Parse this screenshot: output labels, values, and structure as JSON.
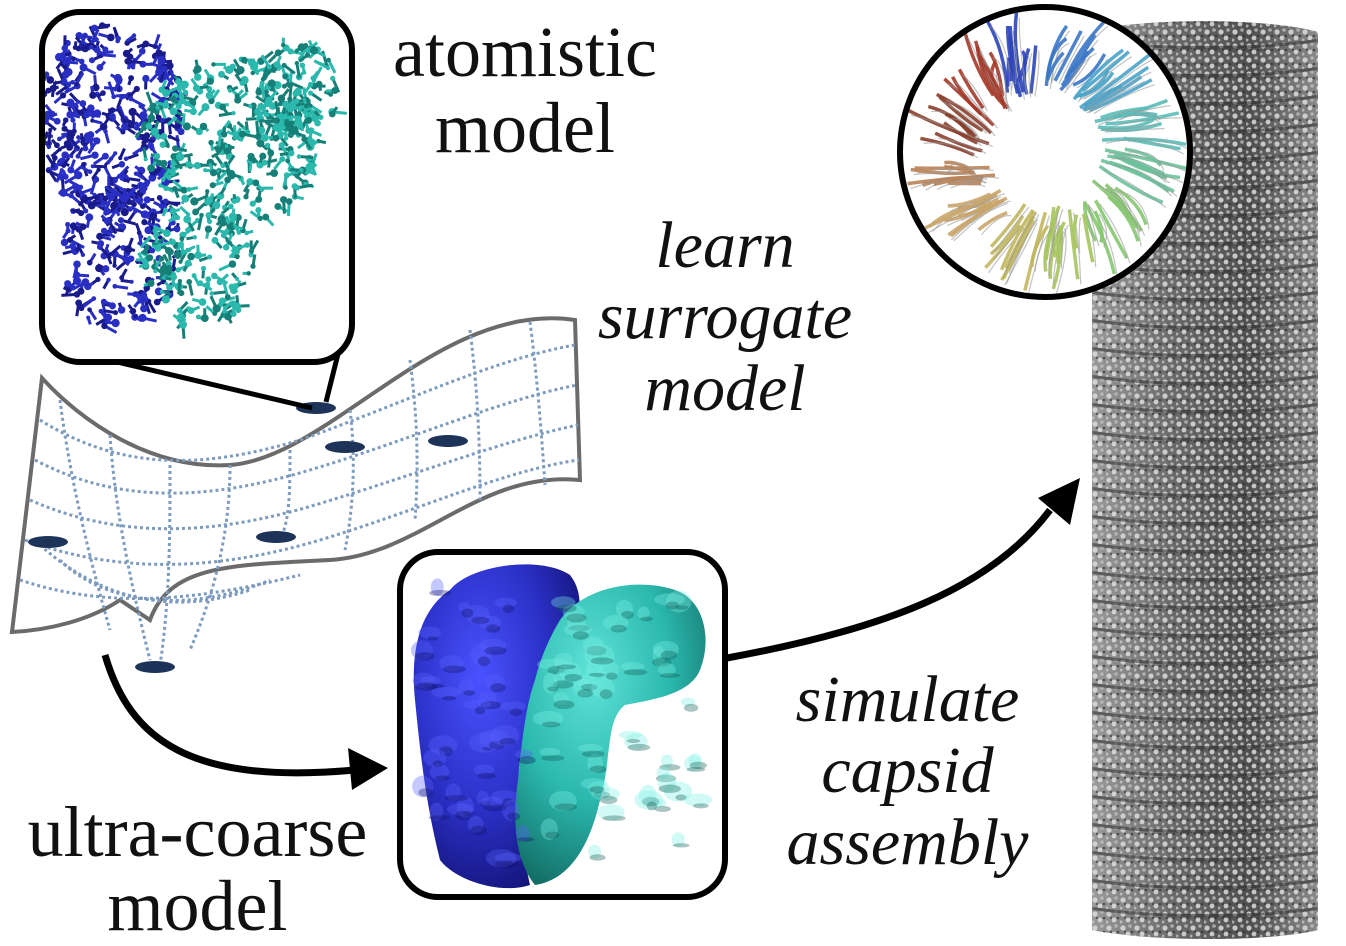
{
  "labels": {
    "atomistic": [
      "atomistic",
      "model"
    ],
    "learn": [
      "learn",
      "surrogate",
      "model"
    ],
    "ultra": [
      "ultra-coarse",
      "model"
    ],
    "simulate": [
      "simulate",
      "capsid",
      "assembly"
    ]
  },
  "colors": {
    "chain_a": "#2a2fc4",
    "chain_b": "#2bb8ad",
    "chain_a_dark": "#1a1b8a",
    "chain_b_dark": "#167f77",
    "mesh": "#7c9bbf",
    "mesh_outline": "#6b6b6b",
    "minimum_marker": "#1e3358",
    "capsid_light": "#e8e8e8",
    "capsid_dark": "#4a4a4a",
    "frame": "#000000"
  },
  "icons": {
    "atomistic_inset": "ball-and-stick-protein-dimer",
    "surface_inset": "surface-protein-dimer",
    "ring_inset": "ribbon-protein-ring",
    "landscape": "free-energy-surface-mesh",
    "capsid": "cylindrical-capsid-tube"
  }
}
